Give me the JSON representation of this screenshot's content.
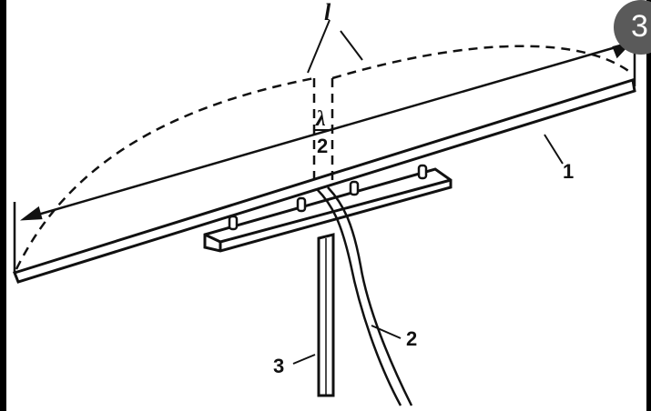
{
  "diagram": {
    "labels": {
      "top_l": "l",
      "lambda": "λ",
      "lambda_den": "2",
      "label_1": "1",
      "label_2": "2",
      "label_3": "3"
    },
    "badge": "3"
  }
}
